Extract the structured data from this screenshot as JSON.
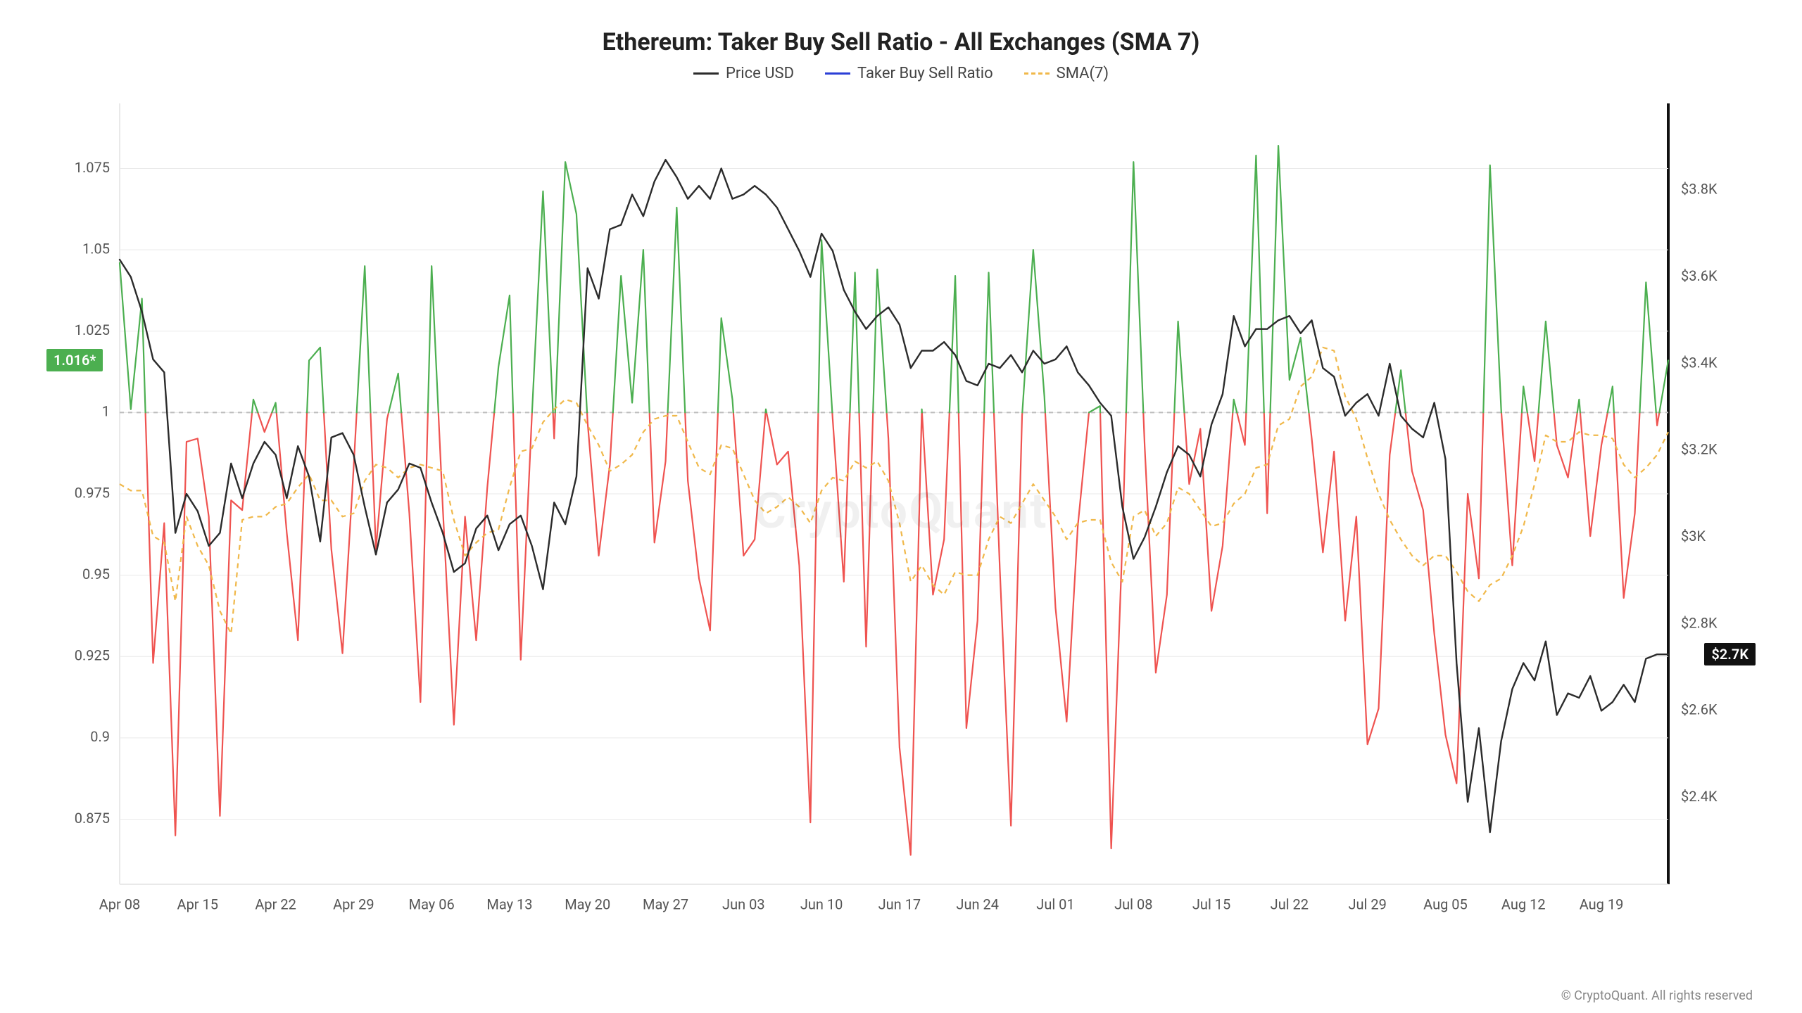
{
  "title": "Ethereum: Taker Buy Sell Ratio - All Exchanges (SMA 7)",
  "legend": {
    "price": {
      "label": "Price USD",
      "color": "#2b2b2b",
      "dashed": false
    },
    "ratio": {
      "label": "Taker Buy Sell Ratio",
      "color": "#2b3fd6",
      "dashed": false
    },
    "sma": {
      "label": "SMA(7)",
      "color": "#f0b84a",
      "dashed": true
    }
  },
  "watermark": "CryptoQuant",
  "copyright": "© CryptoQuant. All rights reserved",
  "badges": {
    "left": {
      "text": "1.016*",
      "value": 1.016,
      "bg": "#4caf50"
    },
    "right": {
      "text": "$2.7K",
      "value": 2730,
      "bg": "#111111"
    }
  },
  "chart": {
    "type": "line",
    "background_color": "#ffffff",
    "grid_color": "#e9e9e9",
    "reference_line": {
      "y": 1.0,
      "color": "#bdbdbd",
      "dash": "6,6",
      "width": 2
    },
    "left_axis": {
      "min": 0.855,
      "max": 1.095,
      "ticks": [
        0.875,
        0.9,
        0.925,
        0.95,
        0.975,
        1.0,
        1.025,
        1.05,
        1.075
      ],
      "tick_labels": [
        "0.875",
        "0.9",
        "0.925",
        "0.95",
        "0.975",
        "1",
        "1.025",
        "1.05",
        "1.075"
      ],
      "tick_fontsize": 20,
      "tick_color": "#555555"
    },
    "right_axis": {
      "min": 2200,
      "max": 4000,
      "ticks": [
        2400,
        2600,
        2800,
        3000,
        3200,
        3400,
        3600,
        3800
      ],
      "tick_labels": [
        "$2.4K",
        "$2.6K",
        "$2.8K",
        "$3K",
        "$3.2K",
        "$3.4K",
        "$3.6K",
        "$3.8K"
      ],
      "tick_fontsize": 20,
      "tick_color": "#555555"
    },
    "x_axis": {
      "min": 0,
      "max": 139,
      "ticks": [
        0,
        7,
        14,
        21,
        28,
        35,
        42,
        49,
        56,
        63,
        70,
        77,
        84,
        91,
        98,
        105,
        112,
        119,
        126,
        133
      ],
      "tick_labels": [
        "Apr 08",
        "Apr 15",
        "Apr 22",
        "Apr 29",
        "May 06",
        "May 13",
        "May 20",
        "May 27",
        "Jun 03",
        "Jun 10",
        "Jun 17",
        "Jun 24",
        "Jul 01",
        "Jul 08",
        "Jul 15",
        "Jul 22",
        "Jul 29",
        "Aug 05",
        "Aug 12",
        "Aug 19"
      ],
      "tick_fontsize": 20,
      "tick_color": "#555555"
    },
    "series": {
      "ratio": {
        "axis": "left",
        "line_width": 2.2,
        "color_above": "#4caf50",
        "color_below": "#ef5350",
        "threshold": 1.0,
        "values": [
          1.046,
          1.001,
          1.035,
          0.923,
          0.966,
          0.87,
          0.991,
          0.992,
          0.968,
          0.876,
          0.973,
          0.97,
          1.004,
          0.994,
          1.003,
          0.963,
          0.93,
          1.016,
          1.02,
          0.958,
          0.926,
          0.983,
          1.045,
          0.958,
          0.998,
          1.012,
          0.969,
          0.911,
          1.045,
          0.971,
          0.904,
          0.968,
          0.93,
          0.977,
          1.014,
          1.036,
          0.924,
          0.999,
          1.068,
          0.992,
          1.077,
          1.061,
          0.997,
          0.956,
          0.984,
          1.042,
          1.003,
          1.05,
          0.96,
          0.985,
          1.063,
          0.979,
          0.949,
          0.933,
          1.029,
          1.004,
          0.956,
          0.961,
          1.001,
          0.984,
          0.988,
          0.953,
          0.874,
          1.053,
          0.998,
          0.948,
          1.043,
          0.928,
          1.044,
          0.992,
          0.897,
          0.864,
          1.001,
          0.944,
          0.961,
          1.042,
          0.903,
          0.936,
          1.043,
          0.952,
          0.873,
          0.999,
          1.05,
          1.005,
          0.94,
          0.905,
          0.965,
          1.0,
          1.002,
          0.866,
          0.96,
          1.077,
          0.99,
          0.92,
          0.944,
          1.028,
          0.978,
          0.995,
          0.939,
          0.959,
          1.004,
          0.99,
          1.079,
          0.969,
          1.082,
          1.01,
          1.023,
          0.992,
          0.957,
          0.988,
          0.936,
          0.968,
          0.898,
          0.909,
          0.987,
          1.013,
          0.982,
          0.97,
          0.932,
          0.901,
          0.886,
          0.975,
          0.949,
          1.076,
          1.001,
          0.953,
          1.008,
          0.985,
          1.028,
          0.99,
          0.98,
          1.004,
          0.962,
          0.99,
          1.008,
          0.943,
          0.969,
          1.04,
          0.996,
          1.016
        ]
      },
      "sma7": {
        "axis": "left",
        "color": "#f0b84a",
        "dashed": true,
        "line_width": 2.2,
        "values": [
          0.978,
          0.976,
          0.976,
          0.962,
          0.96,
          0.942,
          0.968,
          0.959,
          0.953,
          0.939,
          0.932,
          0.967,
          0.968,
          0.968,
          0.971,
          0.972,
          0.977,
          0.981,
          0.973,
          0.973,
          0.968,
          0.969,
          0.979,
          0.984,
          0.983,
          0.98,
          0.983,
          0.984,
          0.983,
          0.982,
          0.967,
          0.956,
          0.96,
          0.963,
          0.964,
          0.977,
          0.988,
          0.989,
          0.997,
          1.001,
          1.004,
          1.003,
          0.996,
          0.99,
          0.982,
          0.984,
          0.987,
          0.994,
          0.998,
          0.999,
          0.999,
          0.991,
          0.983,
          0.981,
          0.99,
          0.989,
          0.981,
          0.973,
          0.969,
          0.971,
          0.974,
          0.971,
          0.966,
          0.976,
          0.98,
          0.979,
          0.985,
          0.983,
          0.985,
          0.979,
          0.966,
          0.948,
          0.953,
          0.947,
          0.944,
          0.951,
          0.95,
          0.95,
          0.961,
          0.968,
          0.966,
          0.972,
          0.978,
          0.973,
          0.968,
          0.961,
          0.966,
          0.967,
          0.967,
          0.954,
          0.948,
          0.968,
          0.97,
          0.962,
          0.966,
          0.977,
          0.975,
          0.97,
          0.965,
          0.966,
          0.972,
          0.975,
          0.983,
          0.984,
          0.996,
          0.998,
          1.008,
          1.011,
          1.02,
          1.019,
          1.005,
          0.998,
          0.986,
          0.975,
          0.967,
          0.961,
          0.956,
          0.953,
          0.956,
          0.956,
          0.951,
          0.945,
          0.942,
          0.947,
          0.949,
          0.956,
          0.965,
          0.978,
          0.993,
          0.991,
          0.991,
          0.994,
          0.993,
          0.993,
          0.992,
          0.984,
          0.98,
          0.983,
          0.987,
          0.994
        ]
      },
      "price": {
        "axis": "right",
        "color": "#2b2b2b",
        "line_width": 2.4,
        "values": [
          3640,
          3600,
          3520,
          3410,
          3380,
          3010,
          3100,
          3060,
          2980,
          3010,
          3170,
          3090,
          3170,
          3220,
          3190,
          3090,
          3210,
          3140,
          2990,
          3230,
          3240,
          3190,
          3070,
          2960,
          3080,
          3110,
          3170,
          3160,
          3080,
          3010,
          2920,
          2940,
          3020,
          3050,
          2970,
          3030,
          3050,
          2980,
          2880,
          3080,
          3030,
          3140,
          3620,
          3550,
          3710,
          3720,
          3790,
          3740,
          3820,
          3870,
          3830,
          3780,
          3810,
          3780,
          3850,
          3780,
          3790,
          3810,
          3790,
          3760,
          3710,
          3660,
          3600,
          3700,
          3660,
          3570,
          3520,
          3480,
          3510,
          3530,
          3490,
          3390,
          3430,
          3430,
          3450,
          3420,
          3360,
          3350,
          3400,
          3390,
          3420,
          3380,
          3430,
          3400,
          3410,
          3440,
          3380,
          3350,
          3310,
          3280,
          3070,
          2950,
          3000,
          3070,
          3150,
          3210,
          3190,
          3140,
          3260,
          3330,
          3510,
          3440,
          3480,
          3480,
          3500,
          3510,
          3470,
          3500,
          3390,
          3370,
          3280,
          3310,
          3330,
          3280,
          3400,
          3280,
          3250,
          3230,
          3310,
          3180,
          2710,
          2390,
          2560,
          2320,
          2530,
          2650,
          2710,
          2670,
          2760,
          2590,
          2640,
          2630,
          2680,
          2600,
          2620,
          2660,
          2620,
          2720,
          2730,
          2730
        ]
      }
    }
  }
}
